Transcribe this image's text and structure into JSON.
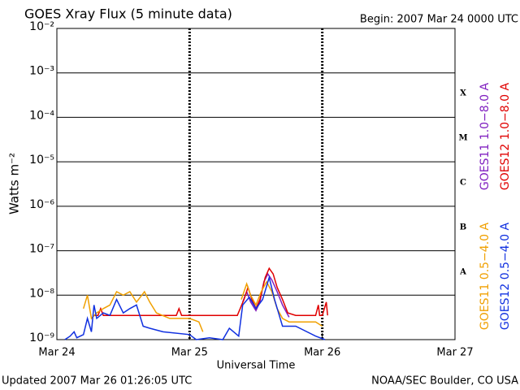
{
  "chart_data": {
    "type": "line",
    "title": "GOES Xray Flux (5 minute data)",
    "subtitle": "Begin:  2007 Mar 24 0000 UTC",
    "xlabel": "Universal Time",
    "ylabel": "Watts m⁻²",
    "footer_left": "Updated 2007 Mar 26 01:26:05 UTC",
    "footer_right": "NOAA/SEC Boulder, CO USA",
    "class_labels": [
      "X",
      "M",
      "C",
      "B",
      "A"
    ],
    "log_scale": true,
    "grid": true,
    "legend": "right",
    "xlim": [
      0,
      3
    ],
    "xticks": [
      {
        "value": 0,
        "label": "Mar 24"
      },
      {
        "value": 1,
        "label": "Mar 25"
      },
      {
        "value": 2,
        "label": "Mar 26"
      },
      {
        "value": 3,
        "label": "Mar 27"
      }
    ],
    "ylim": [
      1e-09,
      0.01
    ],
    "yticks": [
      {
        "value": 1e-09,
        "label": "10⁻⁹"
      },
      {
        "value": 1e-08,
        "label": "10⁻⁸"
      },
      {
        "value": 1e-07,
        "label": "10⁻⁷"
      },
      {
        "value": 1e-06,
        "label": "10⁻⁶"
      },
      {
        "value": 1e-05,
        "label": "10⁻⁵"
      },
      {
        "value": 0.0001,
        "label": "10⁻⁴"
      },
      {
        "value": 0.001,
        "label": "10⁻³"
      },
      {
        "value": 0.01,
        "label": "10⁻²"
      }
    ],
    "series": [
      {
        "name": "GOES11 1.0−8.0 A",
        "color": "#8020c0",
        "x": [
          1.4,
          1.43,
          1.46,
          1.5,
          1.53,
          1.56,
          1.59,
          1.62,
          1.66,
          1.7,
          1.75
        ],
        "values": [
          7e-09,
          1.2e-08,
          7e-09,
          4.5e-09,
          7e-09,
          2e-08,
          3e-08,
          2.2e-08,
          1.2e-08,
          6e-09,
          3.2e-09
        ]
      },
      {
        "name": "GOES12 1.0−8.0 A",
        "color": "#e00000",
        "x": [
          0.276,
          0.31,
          0.33,
          0.35,
          0.55,
          0.8,
          0.9,
          0.92,
          0.94,
          1.0,
          1.2,
          1.36,
          1.41,
          1.44,
          1.47,
          1.5,
          1.53,
          1.57,
          1.6,
          1.63,
          1.66,
          1.7,
          1.74,
          1.8,
          1.95,
          1.97,
          1.98,
          2.0,
          2.03,
          2.04
        ],
        "values": [
          3.5e-09,
          3.5e-09,
          5e-09,
          3.5e-09,
          3.5e-09,
          3.5e-09,
          3.5e-09,
          5e-09,
          3.5e-09,
          3.5e-09,
          3.5e-09,
          3.5e-09,
          8e-09,
          1.5e-08,
          8e-09,
          5e-09,
          8e-09,
          2.5e-08,
          4e-08,
          3e-08,
          1.5e-08,
          8e-09,
          4e-09,
          3.5e-09,
          3.5e-09,
          6e-09,
          3.5e-09,
          3.5e-09,
          7e-09,
          3.5e-09
        ]
      },
      {
        "name": "GOES11 0.5−4.0 A",
        "color": "#f0a000",
        "x": [
          0.2,
          0.23,
          0.26,
          0.3,
          0.35,
          0.4,
          0.45,
          0.5,
          0.55,
          0.6,
          0.66,
          0.7,
          0.75,
          0.85,
          1.0,
          1.07,
          1.1,
          1.2,
          1.39,
          1.43,
          1.46,
          1.5,
          1.54,
          1.58,
          1.62,
          1.66,
          1.7,
          1.75,
          1.95,
          2.0
        ],
        "values": [
          5e-09,
          1e-08,
          3e-09,
          4e-09,
          5e-09,
          6e-09,
          1.2e-08,
          1e-08,
          1.2e-08,
          7e-09,
          1.2e-08,
          7e-09,
          4e-09,
          3e-09,
          3e-09,
          2.5e-09,
          1.5e-09,
          null,
          8e-09,
          1.8e-08,
          1e-08,
          6e-09,
          1.2e-08,
          2e-08,
          1.2e-08,
          5e-09,
          3e-09,
          2.5e-09,
          2.5e-09,
          2e-09
        ]
      },
      {
        "name": "GOES12 0.5−4.0 A",
        "color": "#1030e0",
        "x": [
          0.06,
          0.1,
          0.13,
          0.15,
          0.2,
          0.23,
          0.26,
          0.28,
          0.3,
          0.35,
          0.4,
          0.45,
          0.5,
          0.55,
          0.6,
          0.65,
          0.7,
          0.8,
          1.0,
          1.05,
          1.15,
          1.25,
          1.3,
          1.37,
          1.4,
          1.45,
          1.5,
          1.55,
          1.6,
          1.64,
          1.7,
          1.8,
          1.95,
          2.02
        ],
        "values": [
          1e-09,
          1.2e-09,
          1.5e-09,
          1.1e-09,
          1.3e-09,
          3e-09,
          1.5e-09,
          6e-09,
          3e-09,
          4e-09,
          3.5e-09,
          8e-09,
          4e-09,
          5e-09,
          6e-09,
          2e-09,
          1.8e-09,
          1.5e-09,
          1.3e-09,
          1e-09,
          1.1e-09,
          1e-09,
          1.8e-09,
          1.2e-09,
          6e-09,
          9e-09,
          5e-09,
          8e-09,
          2.5e-08,
          8e-09,
          2e-09,
          2e-09,
          1.2e-09,
          1e-09
        ]
      }
    ]
  }
}
